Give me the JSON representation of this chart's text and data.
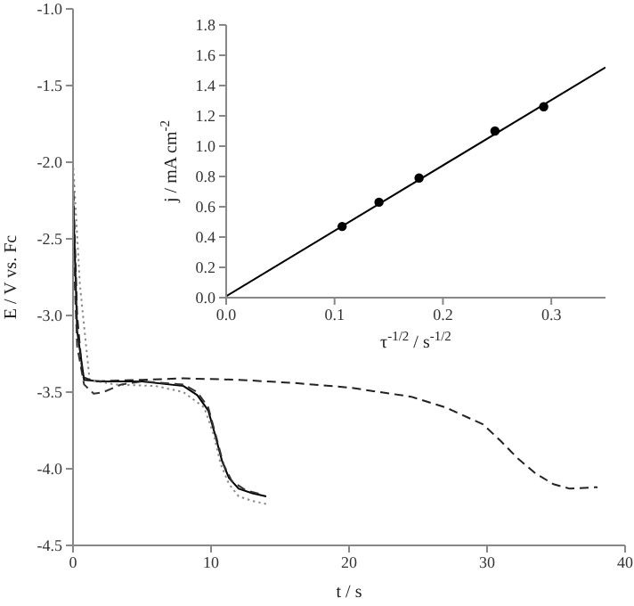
{
  "chart_data": [
    {
      "type": "line",
      "xlabel": "t / s",
      "ylabel": "E / V vs. Fc",
      "xlim": [
        0,
        40
      ],
      "xticks": [
        0,
        10,
        20,
        30,
        40
      ],
      "ylim": [
        -4.5,
        -1.0
      ],
      "yticks": [
        {
          "value": -4.5,
          "label": "-4.5"
        },
        {
          "value": -4.0,
          "label": "-4.0"
        },
        {
          "value": -3.5,
          "label": "-3.5"
        },
        {
          "value": -3.0,
          "label": "-3.0"
        },
        {
          "value": -2.5,
          "label": "-2.5"
        },
        {
          "value": -2.0,
          "label": "-2.0"
        },
        {
          "value": -1.5,
          "label": "-1.5"
        },
        {
          "value": -1.0,
          "label": "-1.0"
        }
      ],
      "series": [
        {
          "color": "#000000",
          "line_style": "solid",
          "x": [
            0,
            0.3,
            0.8,
            2,
            5,
            8,
            9,
            9.8,
            10.3,
            10.8,
            11.3,
            12,
            13,
            14
          ],
          "values": [
            -2.2,
            -3.1,
            -3.42,
            -3.43,
            -3.43,
            -3.46,
            -3.52,
            -3.62,
            -3.78,
            -3.95,
            -4.06,
            -4.13,
            -4.16,
            -4.18
          ]
        },
        {
          "color": "#8a8a8a",
          "line_style": "dotted",
          "x": [
            0,
            0.5,
            1.2,
            3,
            6,
            8,
            9.5,
            10.2,
            10.7,
            11.3,
            12,
            13,
            14
          ],
          "values": [
            -2.0,
            -2.8,
            -3.42,
            -3.45,
            -3.46,
            -3.5,
            -3.6,
            -3.78,
            -3.97,
            -4.1,
            -4.18,
            -4.21,
            -4.23
          ]
        },
        {
          "color": "#333333",
          "line_style": "dashed",
          "x": [
            0,
            0.3,
            0.8,
            1.5,
            2.2,
            3.5,
            5,
            8,
            9,
            9.8,
            10.4,
            10.9,
            11.5,
            12.5,
            13.8
          ],
          "values": [
            -2.5,
            -3.2,
            -3.45,
            -3.51,
            -3.5,
            -3.45,
            -3.43,
            -3.45,
            -3.5,
            -3.6,
            -3.8,
            -3.97,
            -4.08,
            -4.14,
            -4.17
          ]
        },
        {
          "color": "#222222",
          "line_style": "dashed",
          "x": [
            0,
            0.3,
            0.7,
            1.5,
            5,
            8,
            12,
            16,
            20,
            24.5,
            27,
            29.7,
            31,
            32.2,
            33.5,
            34.8,
            36,
            38
          ],
          "values": [
            -2.1,
            -3.0,
            -3.4,
            -3.43,
            -3.42,
            -3.41,
            -3.42,
            -3.44,
            -3.47,
            -3.53,
            -3.6,
            -3.71,
            -3.82,
            -3.93,
            -4.03,
            -4.1,
            -4.13,
            -4.12
          ]
        }
      ]
    },
    {
      "type": "scatter",
      "xlabel": "τ$^{-1/2}$ / s$^{-1/2}$",
      "ylabel": "j / mA cm$^{-2}$",
      "xlim": [
        0,
        0.35
      ],
      "xticks": [
        {
          "value": 0,
          "label": "0.0"
        },
        0.1,
        0.2,
        0.3
      ],
      "ylim": [
        0,
        1.8
      ],
      "yticks": [
        {
          "value": 0,
          "label": "0.0"
        },
        {
          "value": 0.2,
          "label": "0.2"
        },
        {
          "value": 0.4,
          "label": "0.4"
        },
        {
          "value": 0.6,
          "label": "0.6"
        },
        {
          "value": 0.8,
          "label": "0.8"
        },
        {
          "value": 1.0,
          "label": "1.0"
        },
        {
          "value": 1.2,
          "label": "1.2"
        },
        {
          "value": 1.4,
          "label": "1.4"
        },
        {
          "value": 1.6,
          "label": "1.6"
        },
        {
          "value": 1.8,
          "label": "1.8"
        }
      ],
      "series": [
        {
          "marker": "circle",
          "color": "#000000",
          "x": [
            0.107,
            0.141,
            0.178,
            0.248,
            0.293
          ],
          "values": [
            0.47,
            0.63,
            0.79,
            1.1,
            1.26
          ]
        },
        {
          "type": "line",
          "color": "#000000",
          "x": [
            0,
            0.35
          ],
          "values": [
            0.01,
            1.52
          ]
        }
      ]
    }
  ]
}
